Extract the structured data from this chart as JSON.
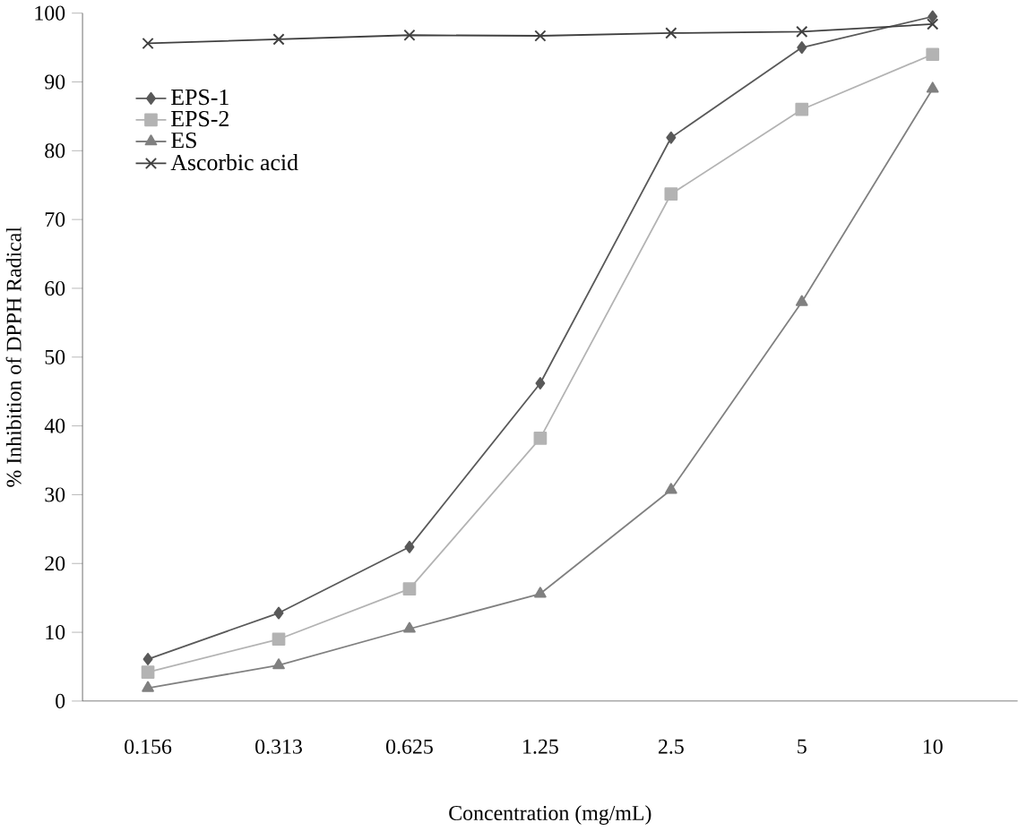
{
  "chart_data": {
    "type": "line",
    "xlabel": "Concentration (mg/mL)",
    "ylabel": "% Inhibition of DPPH Radical",
    "categories": [
      "0.156",
      "0.313",
      "0.625",
      "1.25",
      "2.5",
      "5",
      "10"
    ],
    "ylim": [
      0,
      100
    ],
    "yticks": [
      0,
      10,
      20,
      30,
      40,
      50,
      60,
      70,
      80,
      90,
      100
    ],
    "legend": "top left",
    "grid": false,
    "series": [
      {
        "name": "EPS-1",
        "color": "#595959",
        "marker": "diamond",
        "values": [
          6.1,
          12.8,
          22.4,
          46.2,
          81.9,
          95,
          99.5
        ]
      },
      {
        "name": "EPS-2",
        "color": "#b3b3b3",
        "marker": "square",
        "values": [
          4.2,
          9,
          16.3,
          38.2,
          73.7,
          86,
          94
        ]
      },
      {
        "name": "ES",
        "color": "#808080",
        "marker": "triangle",
        "values": [
          1.9,
          5.2,
          10.5,
          15.6,
          30.7,
          58,
          89
        ]
      },
      {
        "name": "Ascorbic acid",
        "color": "#404040",
        "marker": "cross",
        "values": [
          95.6,
          96.2,
          96.8,
          96.7,
          97.1,
          97.3,
          98.4
        ]
      }
    ]
  }
}
